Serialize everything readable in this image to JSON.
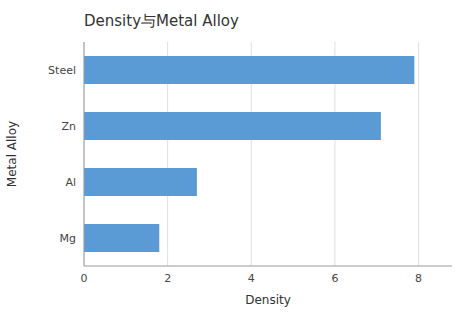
{
  "chart_data": {
    "type": "bar",
    "orientation": "horizontal",
    "title": "Density与Metal Alloy",
    "categories": [
      "Steel",
      "Zn",
      "Al",
      "Mg"
    ],
    "values": [
      7.9,
      7.1,
      2.7,
      1.8
    ],
    "color": "#5b9bd5",
    "xlabel": "Density",
    "ylabel": "Metal Alloy",
    "xlim": [
      0,
      8.8
    ],
    "xticks": [
      0,
      2,
      4,
      6,
      8
    ],
    "grid": true
  }
}
